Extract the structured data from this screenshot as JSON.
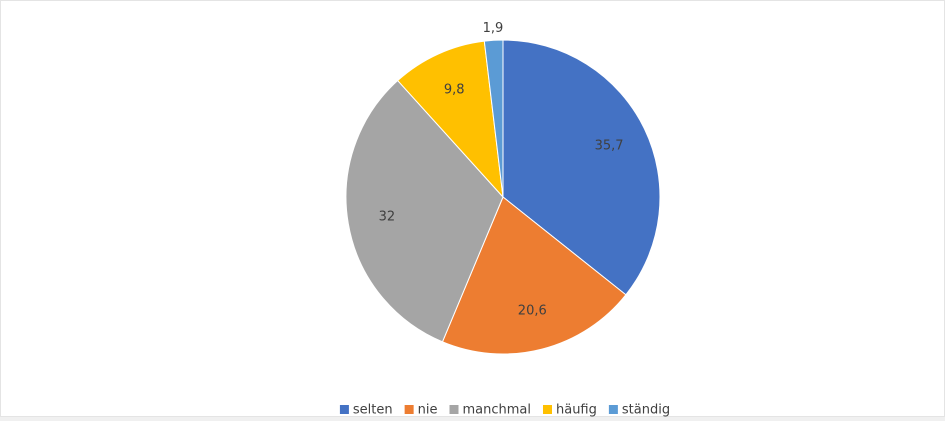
{
  "chart_data": {
    "type": "pie",
    "categories": [
      "selten",
      "nie",
      "manchmal",
      "häufig",
      "ständig"
    ],
    "values": [
      35.7,
      20.6,
      32,
      9.8,
      1.9
    ],
    "value_labels": [
      "35,7",
      "20,6",
      "32",
      "9,8",
      "1,9"
    ],
    "colors": [
      "#4472c4",
      "#ed7d31",
      "#a5a5a5",
      "#ffc000",
      "#5b9bd5"
    ],
    "legend": "bottom"
  }
}
